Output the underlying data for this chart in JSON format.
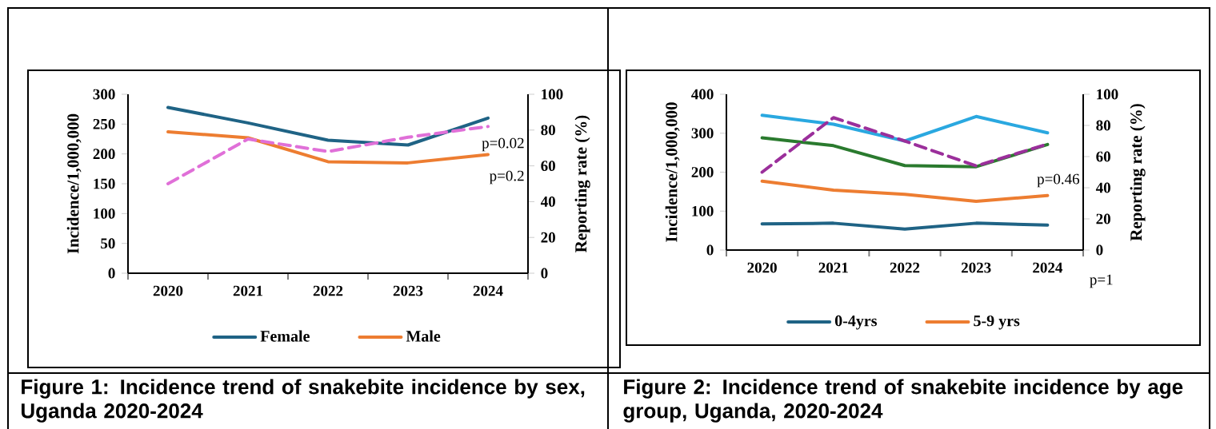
{
  "chart_data": [
    {
      "type": "line",
      "title": "Figure 1: Incidence trend of snakebite incidence by sex, Uganda 2020-2024",
      "ylabel": "Incidence/1,000,000",
      "y2label": "Reporting rate (%)",
      "categories": [
        "2020",
        "2021",
        "2022",
        "2023",
        "2024"
      ],
      "series": [
        {
          "name": "Female",
          "color": "#1f6385",
          "values": [
            278,
            252,
            223,
            215,
            260
          ]
        },
        {
          "name": "Male",
          "color": "#ed7d31",
          "values": [
            237,
            227,
            187,
            185,
            199
          ]
        },
        {
          "color": "#e070d8",
          "values": [
            50,
            75,
            68,
            76,
            82
          ],
          "axis": "y2",
          "line_style": "dashed"
        }
      ],
      "ylim": [
        0,
        300
      ],
      "yticks": [
        0,
        50,
        100,
        150,
        200,
        250,
        300
      ],
      "y2lim": [
        0,
        100
      ],
      "y2ticks": [
        0,
        20,
        40,
        60,
        80,
        100
      ],
      "legend": "bottom",
      "annotations": [
        "p=0.02",
        "p=0.2"
      ]
    },
    {
      "type": "line",
      "title": "Figure 2: Incidence trend of snakebite incidence by age group, Uganda, 2020-2024",
      "ylabel": "Incidence/1,000,000",
      "y2label": "Reporting rate (%)",
      "categories": [
        "2020",
        "2021",
        "2022",
        "2023",
        "2024"
      ],
      "series": [
        {
          "name": "0-4yrs",
          "color": "#1f6385",
          "values": [
            67,
            69,
            54,
            69,
            64
          ]
        },
        {
          "name": "5-9 yrs",
          "color": "#ed7d31",
          "values": [
            177,
            154,
            143,
            125,
            140
          ]
        },
        {
          "color": "#2a7a2e",
          "values": [
            288,
            268,
            217,
            214,
            271
          ]
        },
        {
          "color": "#2aa8e0",
          "values": [
            346,
            323,
            280,
            343,
            301
          ]
        },
        {
          "color": "#9b2f9b",
          "values": [
            50,
            85,
            70,
            54,
            68
          ],
          "axis": "y2",
          "line_style": "dashed"
        }
      ],
      "ylim": [
        0,
        400
      ],
      "yticks": [
        0,
        100,
        200,
        300,
        400
      ],
      "y2lim": [
        0,
        100
      ],
      "y2ticks": [
        0,
        20,
        40,
        60,
        80,
        100
      ],
      "legend": "bottom",
      "annotations": [
        "p=0.46",
        "p=1"
      ]
    }
  ]
}
